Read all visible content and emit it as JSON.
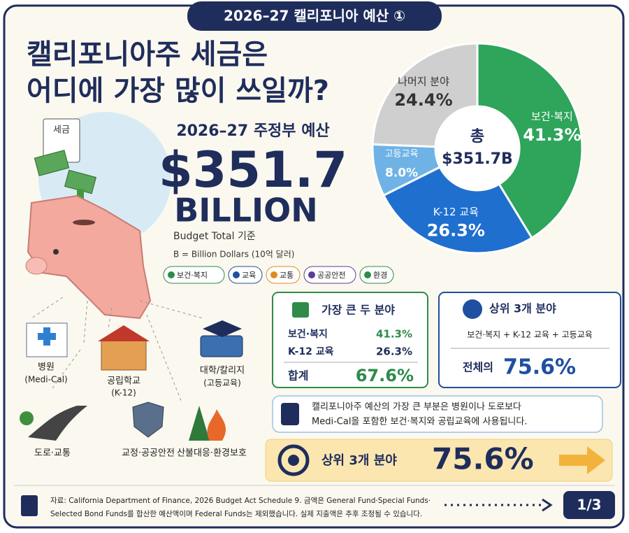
{
  "header": {
    "badge": "2026–27 캘리포니아 예산 ①"
  },
  "title": {
    "lines": [
      "캘리포니아주 세금은",
      "어디에 가장 많이 쓰일까?"
    ]
  },
  "budget": {
    "label": "2026–27 주정부 예산",
    "amount": "$351.7",
    "unit": "BILLION",
    "basis": "Budget Total 기준",
    "note": "B = Billion Dollars (10억 달러)"
  },
  "tags": [
    "보건·복지",
    "교육",
    "교통",
    "공공안전",
    "환경"
  ],
  "illustration": {
    "bill_label": "세금",
    "places": [
      [
        "병원",
        "(Medi-Cal)"
      ],
      [
        "공립학교",
        "(K-12)"
      ],
      [
        "대학/칼리지",
        "(고등교육)"
      ],
      [
        "도로·교통"
      ],
      [
        "교정·공공안전"
      ],
      [
        "산불대응·환경보호"
      ]
    ]
  },
  "chart_data": {
    "type": "pie",
    "donut": true,
    "center_label": "총",
    "center_value": "$351.7B",
    "categories": [
      "보건·복지",
      "K-12 교육",
      "고등교육",
      "나머지 분야"
    ],
    "values": [
      41.3,
      26.3,
      8.0,
      24.4
    ],
    "value_labels": [
      "41.3%",
      "26.3%",
      "8.0%",
      "24.4%"
    ],
    "colors": [
      "#2ea55a",
      "#1f6fcf",
      "#6fb3e6",
      "#cfcfcf"
    ],
    "label_colors": [
      "#ffffff",
      "#ffffff",
      "#ffffff",
      "#333333"
    ]
  },
  "top_two": {
    "title": "가장 큰 두 분야",
    "rows": [
      [
        "보건·복지",
        "41.3%"
      ],
      [
        "K-12 교육",
        "26.3%"
      ]
    ],
    "total": [
      "합계",
      "67.6%"
    ]
  },
  "top_three": {
    "title": "상위 3개 분야",
    "formula": "보건·복지 + K-12 교육 + 고등교육",
    "label": "전체의",
    "value": "75.6%"
  },
  "summary": {
    "lines": [
      "캘리포니아주 예산의 가장 큰 부분은 병원이나 도로보다",
      "Medi-Cal을 포함한 보건·복지와 공립교육에 사용됩니다."
    ]
  },
  "highlight": {
    "label": "상위 3개 분야",
    "value": "75.6%"
  },
  "footer": {
    "source": [
      "자료: California Department of Finance, 2026 Budget Act Schedule 9. 금액은 General Fund·Special Funds·",
      "Selected Bond Funds를 합산한 예산액이며 Federal Funds는 제외했습니다. 실제 지출액은 추후 조정될 수 있습니다."
    ],
    "page": "1/3"
  }
}
